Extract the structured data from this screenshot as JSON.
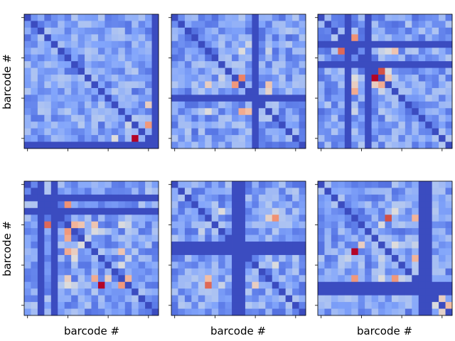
{
  "figure": {
    "xlabel": "barcode #",
    "ylabel": "barcode #"
  },
  "chart_data": {
    "type": "heatmap",
    "grid_size": 20,
    "colormap": "coolwarm",
    "value_range": [
      0,
      1
    ],
    "panels": [
      {
        "label_row": 0,
        "label_col": 0,
        "xlabel": "",
        "ylabel": "barcode #",
        "special_index": 19,
        "hot": [
          [
            18,
            16,
            1.0
          ],
          [
            16,
            18,
            0.75
          ],
          [
            13,
            18,
            0.6
          ],
          [
            18,
            13,
            0.55
          ],
          [
            14,
            6,
            0.45
          ],
          [
            15,
            11,
            0.45
          ],
          [
            6,
            14,
            0.42
          ],
          [
            9,
            4,
            0.4
          ],
          [
            15,
            3,
            0.4
          ],
          [
            8,
            11,
            0.38
          ],
          [
            16,
            15,
            0.5
          ]
        ]
      },
      {
        "label_row": 0,
        "label_col": 1,
        "xlabel": "",
        "ylabel": "",
        "special_index": 12,
        "hot": [
          [
            10,
            10,
            1.0
          ],
          [
            9,
            10,
            0.8
          ],
          [
            10,
            9,
            0.75
          ],
          [
            9,
            9,
            0.6
          ],
          [
            14,
            10,
            0.7
          ],
          [
            14,
            11,
            0.65
          ],
          [
            10,
            5,
            0.6
          ],
          [
            5,
            10,
            0.55
          ],
          [
            14,
            5,
            0.55
          ],
          [
            9,
            7,
            0.5
          ],
          [
            4,
            11,
            0.5
          ],
          [
            16,
            10,
            0.45
          ],
          [
            14,
            4,
            0.45
          ],
          [
            10,
            3,
            0.45
          ],
          [
            6,
            7,
            0.4
          ],
          [
            15,
            14,
            0.45
          ]
        ]
      },
      {
        "label_row": 0,
        "label_col": 2,
        "xlabel": "",
        "ylabel": "",
        "special_index": [
          4,
          7
        ],
        "hot": [
          [
            5,
            3,
            0.85
          ],
          [
            9,
            8,
            1.0
          ],
          [
            9,
            9,
            0.75
          ],
          [
            10,
            9,
            0.7
          ],
          [
            10,
            8,
            0.6
          ],
          [
            11,
            5,
            0.7
          ],
          [
            10,
            5,
            0.6
          ],
          [
            3,
            3,
            0.6
          ],
          [
            3,
            4,
            0.55
          ],
          [
            9,
            5,
            0.55
          ],
          [
            14,
            5,
            0.5
          ],
          [
            14,
            9,
            0.45
          ],
          [
            15,
            10,
            0.45
          ],
          [
            11,
            9,
            0.5
          ],
          [
            3,
            2,
            0.45
          ],
          [
            16,
            14,
            0.4
          ]
        ]
      },
      {
        "label_row": 1,
        "label_col": 0,
        "xlabel": "barcode #",
        "ylabel": "barcode #",
        "special_index": [
          2,
          4
        ],
        "hot": [
          [
            15,
            11,
            1.0
          ],
          [
            6,
            3,
            0.85
          ],
          [
            7,
            6,
            0.75
          ],
          [
            8,
            6,
            0.7
          ],
          [
            10,
            6,
            0.7
          ],
          [
            14,
            10,
            0.7
          ],
          [
            15,
            14,
            0.75
          ],
          [
            14,
            12,
            0.6
          ],
          [
            10,
            7,
            0.6
          ],
          [
            11,
            7,
            0.55
          ],
          [
            14,
            6,
            0.6
          ],
          [
            3,
            3,
            0.55
          ],
          [
            11,
            15,
            0.5
          ],
          [
            10,
            11,
            0.45
          ],
          [
            6,
            2,
            0.5
          ],
          [
            15,
            6,
            0.55
          ],
          [
            15,
            7,
            0.5
          ],
          [
            9,
            8,
            0.55
          ],
          [
            3,
            2,
            0.45
          ]
        ]
      },
      {
        "label_row": 1,
        "label_col": 1,
        "xlabel": "barcode #",
        "ylabel": "",
        "special_index": [
          9,
          10
        ],
        "hot": [
          [
            11,
            10,
            1.0
          ],
          [
            15,
            5,
            0.85
          ],
          [
            9,
            5,
            0.7
          ],
          [
            9,
            7,
            0.6
          ],
          [
            14,
            5,
            0.65
          ],
          [
            14,
            9,
            0.65
          ],
          [
            14,
            10,
            0.55
          ],
          [
            11,
            11,
            0.7
          ],
          [
            4,
            10,
            0.55
          ],
          [
            4,
            7,
            0.55
          ],
          [
            4,
            15,
            0.5
          ],
          [
            15,
            9,
            0.55
          ],
          [
            15,
            12,
            0.6
          ],
          [
            6,
            5,
            0.45
          ],
          [
            8,
            4,
            0.4
          ],
          [
            16,
            11,
            0.45
          ],
          [
            3,
            6,
            0.45
          ],
          [
            15,
            7,
            0.5
          ],
          [
            11,
            14,
            0.45
          ]
        ]
      },
      {
        "label_row": 1,
        "label_col": 2,
        "xlabel": "barcode #",
        "ylabel": "",
        "special_index": [
          15,
          16
        ],
        "hot": [
          [
            10,
            5,
            1.0
          ],
          [
            14,
            5,
            0.75
          ],
          [
            14,
            11,
            0.75
          ],
          [
            9,
            6,
            0.6
          ],
          [
            10,
            10,
            0.6
          ],
          [
            14,
            9,
            0.55
          ],
          [
            18,
            18,
            0.8
          ],
          [
            18,
            19,
            0.65
          ],
          [
            17,
            18,
            0.6
          ],
          [
            4,
            11,
            0.55
          ],
          [
            5,
            5,
            0.55
          ],
          [
            13,
            9,
            0.45
          ],
          [
            14,
            12,
            0.5
          ],
          [
            9,
            11,
            0.55
          ],
          [
            16,
            11,
            0.5
          ],
          [
            17,
            11,
            0.45
          ],
          [
            9,
            9,
            0.45
          ]
        ]
      }
    ]
  }
}
